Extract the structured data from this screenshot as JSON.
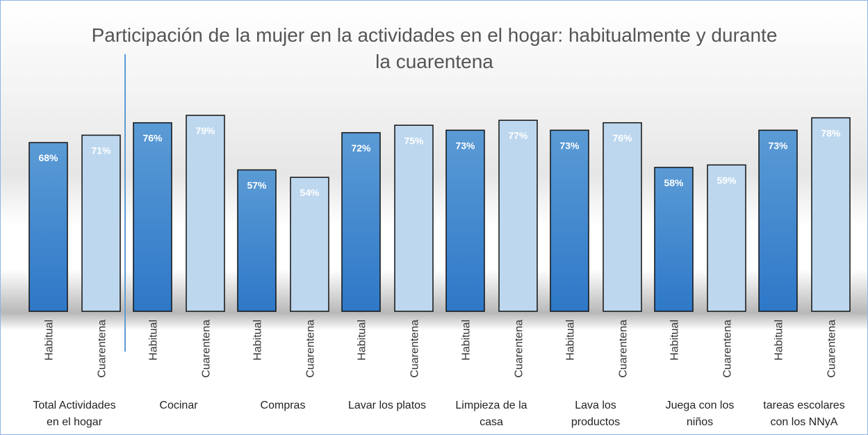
{
  "chart_data": {
    "type": "bar",
    "title": "Participación de la mujer en la actividades en el hogar: habitualmente y durante la cuarentena",
    "categories": [
      [
        "Total Actividades",
        "en el hogar"
      ],
      [
        "Cocinar"
      ],
      [
        "Compras"
      ],
      [
        "Lavar los platos"
      ],
      [
        "Limpieza de la",
        "casa"
      ],
      [
        "Lava los",
        "productos"
      ],
      [
        "Juega con los",
        "niños"
      ],
      [
        "tareas escolares",
        "con los NNyA"
      ]
    ],
    "series": [
      {
        "name": "Habitual",
        "color": "#3a86d4",
        "values": [
          68,
          76,
          57,
          72,
          73,
          73,
          58,
          73
        ],
        "value_labels": [
          "68%",
          "76%",
          "57%",
          "72%",
          "73%",
          "73%",
          "58%",
          "73%"
        ]
      },
      {
        "name": "Cuarentena",
        "color": "#bdd7ee",
        "values": [
          71,
          79,
          54,
          75,
          77,
          76,
          59,
          78
        ],
        "value_labels": [
          "71%",
          "79%",
          "54%",
          "75%",
          "77%",
          "76%",
          "59%",
          "78%"
        ]
      }
    ]
  }
}
